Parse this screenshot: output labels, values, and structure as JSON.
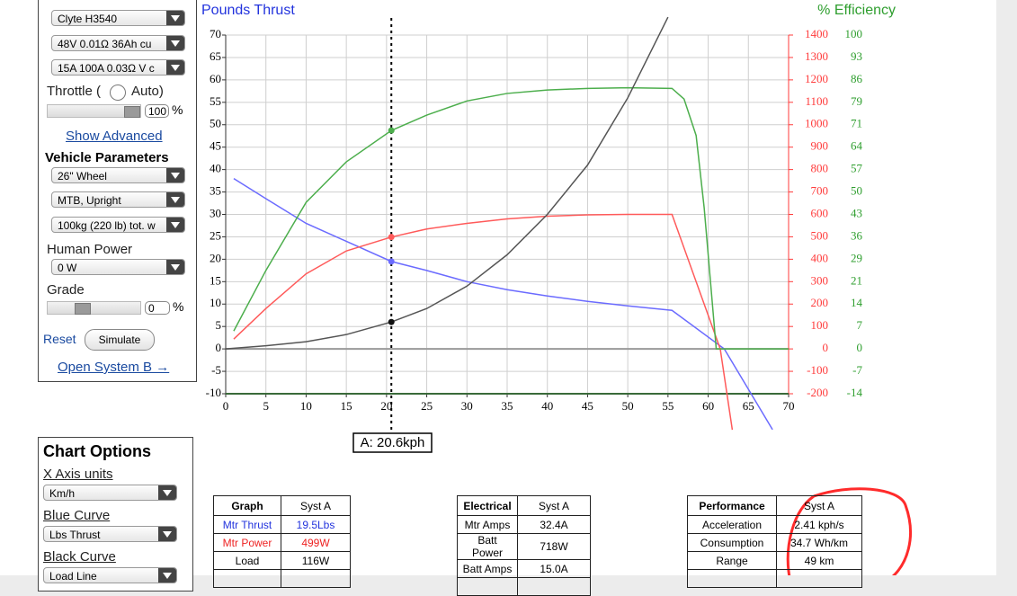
{
  "sidebar": {
    "motor_select": "Clyte H3540",
    "battery_select": "48V 0.01Ω 36Ah cu",
    "controller_select": "15A 100A 0.03Ω V c",
    "throttle_label": "Throttle (",
    "auto_label": "Auto)",
    "throttle_value": "100",
    "throttle_unit": "%",
    "show_advanced": "Show Advanced",
    "vehicle_heading": "Vehicle Parameters",
    "wheel_select": "26\" Wheel",
    "posture_select": "MTB, Upright",
    "weight_select": "100kg (220 lb) tot. w",
    "human_power_label": "Human Power",
    "human_power_select": "0 W",
    "grade_label": "Grade",
    "grade_value": "0",
    "grade_unit": "%",
    "reset": "Reset",
    "simulate": "Simulate",
    "open_system_b": "Open System B →"
  },
  "chart_options": {
    "title": "Chart Options",
    "x_axis_label": "X Axis units",
    "x_axis_select": "Km/h",
    "blue_label": "Blue Curve",
    "blue_select": "Lbs Thrust",
    "black_label": "Black Curve",
    "black_select": "Load Line"
  },
  "tables": [
    {
      "header": [
        "Graph",
        "Syst A"
      ],
      "rows": [
        [
          "Mtr Thrust",
          "19.5Lbs"
        ],
        [
          "Mtr Power",
          "499W"
        ],
        [
          "Load",
          "116W"
        ]
      ]
    },
    {
      "header": [
        "Electrical",
        "Syst A"
      ],
      "rows": [
        [
          "Mtr Amps",
          "32.4A"
        ],
        [
          "Batt Power",
          "718W"
        ],
        [
          "Batt Amps",
          "15.0A"
        ]
      ]
    },
    {
      "header": [
        "Performance",
        "Syst A"
      ],
      "rows": [
        [
          "Acceleration",
          "2.41 kph/s"
        ],
        [
          "Consumption",
          "34.7 Wh/km"
        ],
        [
          "Range",
          "49 km"
        ]
      ]
    }
  ],
  "chart_data": {
    "type": "line",
    "ylabel": "Pounds Thrust",
    "y3label": "% Efficiency",
    "grid": true,
    "xlim": [
      0,
      70
    ],
    "xticks": [
      0,
      5,
      10,
      15,
      20,
      25,
      30,
      35,
      40,
      45,
      50,
      55,
      60,
      65,
      70
    ],
    "ylim": [
      -10,
      70
    ],
    "yticks": [
      70,
      65,
      60,
      55,
      50,
      45,
      40,
      35,
      30,
      25,
      20,
      15,
      10,
      5,
      0,
      -5,
      -10
    ],
    "y2lim": [
      -200,
      1400
    ],
    "y2ticks": [
      1400,
      1300,
      1200,
      1100,
      1000,
      900,
      800,
      700,
      600,
      500,
      400,
      300,
      200,
      100,
      0,
      -100,
      -200
    ],
    "y3lim": [
      -14.29,
      100
    ],
    "y3ticks": [
      100,
      {
        "value": 92.86,
        "label": "93"
      },
      {
        "value": 85.71,
        "label": "86"
      },
      {
        "value": 78.57,
        "label": "79"
      },
      {
        "value": 71.43,
        "label": "71"
      },
      {
        "value": 64.29,
        "label": "64"
      },
      {
        "value": 57.14,
        "label": "57"
      },
      50,
      {
        "value": 42.86,
        "label": "43"
      },
      {
        "value": 35.71,
        "label": "36"
      },
      {
        "value": 28.57,
        "label": "29"
      },
      {
        "value": 21.43,
        "label": "21"
      },
      {
        "value": 14.29,
        "label": "14"
      },
      {
        "value": 7.14,
        "label": "7"
      },
      0,
      {
        "value": -7.14,
        "label": "-7"
      },
      {
        "value": -14.29,
        "label": "-14"
      }
    ],
    "y2color": "#ff3b3b",
    "y3color": "#2e9e2e",
    "ylabelcolor": "#2233dd",
    "series": [
      {
        "color": "#6b6bff",
        "axis": "y",
        "x": [
          1,
          5,
          10,
          15,
          20.6,
          25,
          30,
          35,
          40,
          45,
          50,
          55.5,
          62,
          68
        ],
        "values": [
          38,
          33.5,
          28,
          24,
          19.5,
          17.5,
          15,
          13.2,
          11.8,
          10.6,
          9.6,
          8.6,
          0,
          -18
        ]
      },
      {
        "color": "#ff5a5a",
        "axis": "y2",
        "x": [
          1,
          5,
          10,
          15,
          20.6,
          25,
          30,
          35,
          40,
          45,
          50,
          55.5,
          61.5,
          63
        ],
        "values": [
          44,
          180,
          335,
          437,
          499,
          535,
          560,
          580,
          592,
          598,
          600,
          600,
          0,
          -361
        ]
      },
      {
        "color": "#4cae4c",
        "axis": "y3",
        "x": [
          1,
          5,
          10,
          15,
          20.6,
          25,
          30,
          35,
          40,
          45,
          50,
          55.5,
          57,
          58.5,
          59.5,
          61,
          70
        ],
        "values": [
          5.7,
          25,
          46.7,
          59.6,
          69.6,
          74.5,
          79,
          81.4,
          82.5,
          83,
          83.2,
          83,
          79.6,
          68,
          45,
          0,
          0
        ]
      },
      {
        "color": "#555555",
        "axis": "y",
        "x": [
          0,
          5,
          10,
          15,
          20.6,
          25,
          30,
          35,
          40,
          45,
          50,
          55
        ],
        "values": [
          0,
          0.7,
          1.6,
          3.2,
          6,
          9,
          14,
          21,
          30,
          41,
          56,
          74
        ]
      }
    ],
    "cursor": {
      "x": 20.6,
      "label": "A: 20.6kph"
    }
  }
}
